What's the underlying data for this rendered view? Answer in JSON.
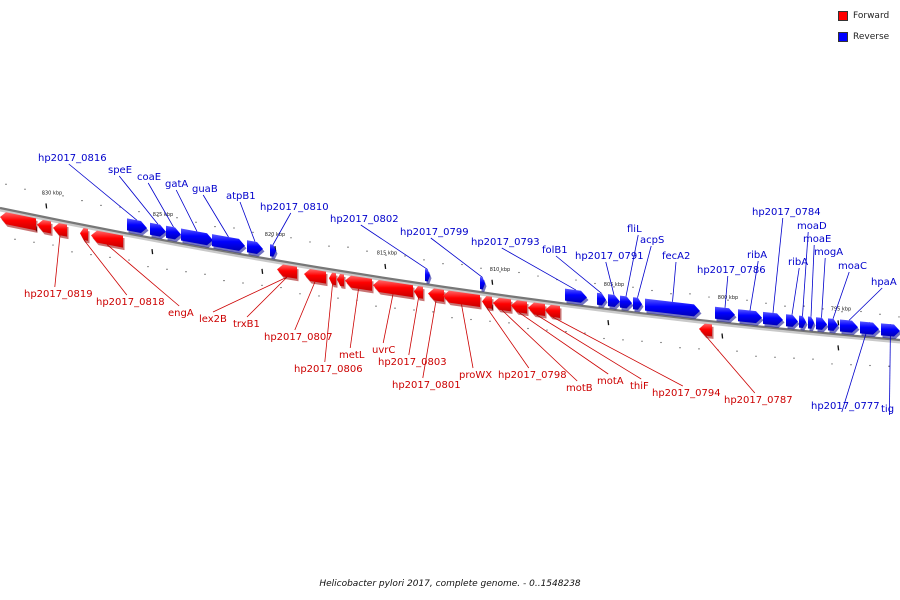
{
  "legend": {
    "forward_label": "Forward",
    "reverse_label": "Reverse",
    "forward_color": "#ff0000",
    "reverse_color": "#0000ff"
  },
  "caption": "Helicobacter pylori 2017, complete genome. - 0..1548238",
  "kbp_ticks": [
    "830 kbp",
    "825 kbp",
    "820 kbp",
    "815 kbp",
    "810 kbp",
    "805 kbp",
    "800 kbp",
    "795 kbp"
  ],
  "reverse_genes": [
    "hp2017_0816",
    "speE",
    "coaE",
    "gatA",
    "guaB",
    "atpB1",
    "hp2017_0810",
    "hp2017_0802",
    "hp2017_0799",
    "hp2017_0793",
    "folB1",
    "hp2017_0791",
    "fliL",
    "acpS",
    "fecA2",
    "hp2017_0786",
    "ribA",
    "hp2017_0784",
    "ribA",
    "moaD",
    "moaE",
    "mogA",
    "moaC",
    "hpaA",
    "hp2017_0777",
    "tig"
  ],
  "forward_genes": [
    "hp2017_0819",
    "hp2017_0818",
    "engA",
    "lex2B",
    "trxB1",
    "hp2017_0807",
    "hp2017_0806",
    "metL",
    "uvrC",
    "hp2017_0803",
    "hp2017_0801",
    "proWX",
    "hp2017_0798",
    "motB",
    "motA",
    "thiF",
    "hp2017_0794",
    "hp2017_0787"
  ]
}
